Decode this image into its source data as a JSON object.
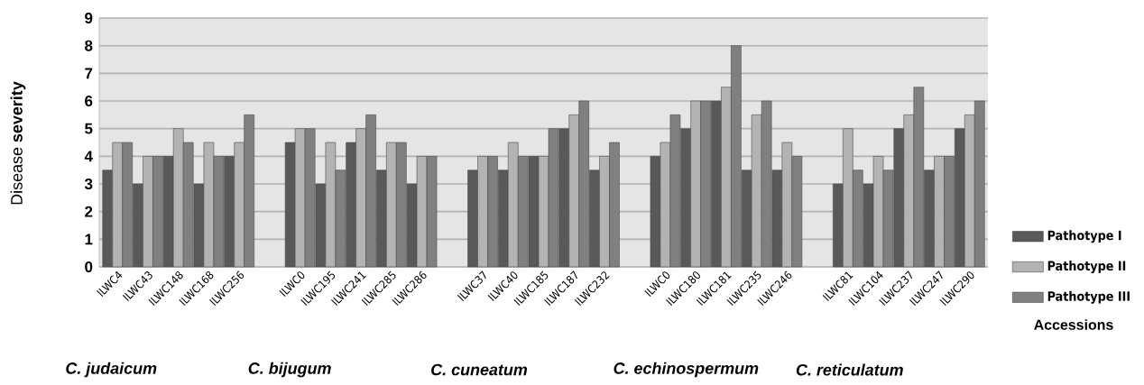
{
  "chart_data": {
    "type": "bar",
    "categories": [
      "ILWC4",
      "ILWC43",
      "ILWC148",
      "ILWC168",
      "ILWC256",
      null,
      "ILWC0",
      "ILWC195",
      "ILWC241",
      "ILWC285",
      "ILWC286",
      null,
      "ILWC37",
      "ILWC40",
      "ILWC185",
      "ILWC187",
      "ILWC232",
      null,
      "ILWC0",
      "ILWC180",
      "ILWC181",
      "ILWC235",
      "ILWC246",
      null,
      "ILWC81",
      "ILWC104",
      "ILWC237",
      "ILWC247",
      "ILWC290"
    ],
    "series": [
      {
        "name": "Pathotype I",
        "color": "#595959",
        "values": [
          3.5,
          3,
          4,
          3,
          4,
          null,
          4.5,
          3,
          4.5,
          3.5,
          3,
          null,
          3.5,
          3.5,
          4,
          5,
          3.5,
          null,
          4,
          5,
          6,
          3.5,
          3.5,
          null,
          3,
          3,
          5,
          3.5,
          5
        ]
      },
      {
        "name": "Pathotype II",
        "color": "#b3b3b3",
        "values": [
          4.5,
          4,
          5,
          4.5,
          4.5,
          null,
          5,
          4.5,
          5,
          4.5,
          4,
          null,
          4,
          4.5,
          4,
          5.5,
          4,
          null,
          4.5,
          6,
          6.5,
          5.5,
          4.5,
          null,
          5,
          4,
          5.5,
          4,
          5.5
        ]
      },
      {
        "name": "Pathotype III",
        "color": "#808080",
        "values": [
          4.5,
          4,
          4.5,
          4,
          5.5,
          null,
          5,
          3.5,
          5.5,
          4.5,
          4,
          null,
          4,
          4,
          5,
          6,
          4.5,
          null,
          5.5,
          6,
          8,
          6,
          4,
          null,
          3.5,
          3.5,
          6.5,
          4,
          6
        ]
      }
    ],
    "ylabel": "Disease **severity**",
    "xlabel": "Accessions",
    "annotations": [
      "C. judaicum",
      "C. bijugum",
      "C. cuneatum",
      "C. echinospermum",
      "C. reticulatum"
    ],
    "ylim": [
      0,
      9
    ],
    "yticks": [
      0,
      1,
      2,
      3,
      4,
      5,
      6,
      7,
      8,
      9
    ],
    "grid": "y",
    "legend": "right"
  }
}
